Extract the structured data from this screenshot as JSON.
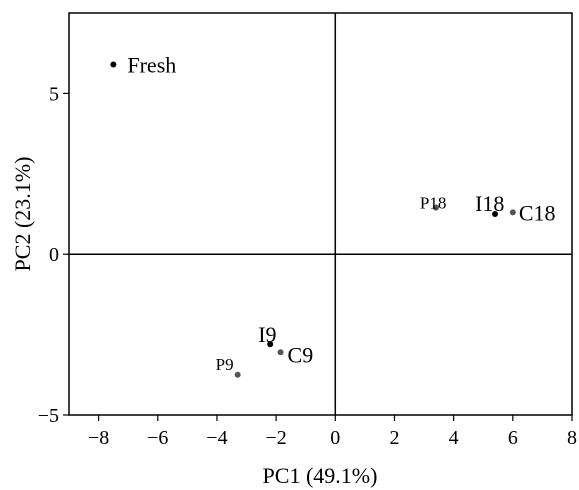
{
  "chart_data": {
    "type": "scatter",
    "title": "",
    "xlabel": "PC1 (49.1%)",
    "ylabel": "PC2 (23.1%)",
    "xlim": [
      -9,
      8
    ],
    "ylim": [
      -5,
      7.5
    ],
    "xticks": [
      -8,
      -6,
      -4,
      -2,
      0,
      2,
      4,
      6,
      8
    ],
    "xtick_labels": [
      "−8",
      "−6",
      "−4",
      "−2",
      "0",
      "2",
      "4",
      "6",
      "8"
    ],
    "yticks": [
      -5,
      0,
      5
    ],
    "ytick_labels": [
      "−5",
      "0",
      "5"
    ],
    "zero_lines": true,
    "grid": false,
    "points": [
      {
        "label": "Fresh",
        "x": -7.5,
        "y": 5.9,
        "color": "#000000",
        "label_size": "large"
      },
      {
        "label": "P18",
        "x": 3.4,
        "y": 1.45,
        "color": "#555555",
        "label_size": "small"
      },
      {
        "label": "I18",
        "x": 5.4,
        "y": 1.25,
        "color": "#000000",
        "label_size": "large"
      },
      {
        "label": "C18",
        "x": 6.0,
        "y": 1.3,
        "color": "#555555",
        "label_size": "large"
      },
      {
        "label": "I9",
        "x": -2.2,
        "y": -2.8,
        "color": "#000000",
        "label_size": "large"
      },
      {
        "label": "C9",
        "x": -1.85,
        "y": -3.05,
        "color": "#555555",
        "label_size": "large"
      },
      {
        "label": "P9",
        "x": -3.3,
        "y": -3.75,
        "color": "#555555",
        "label_size": "small"
      }
    ]
  }
}
